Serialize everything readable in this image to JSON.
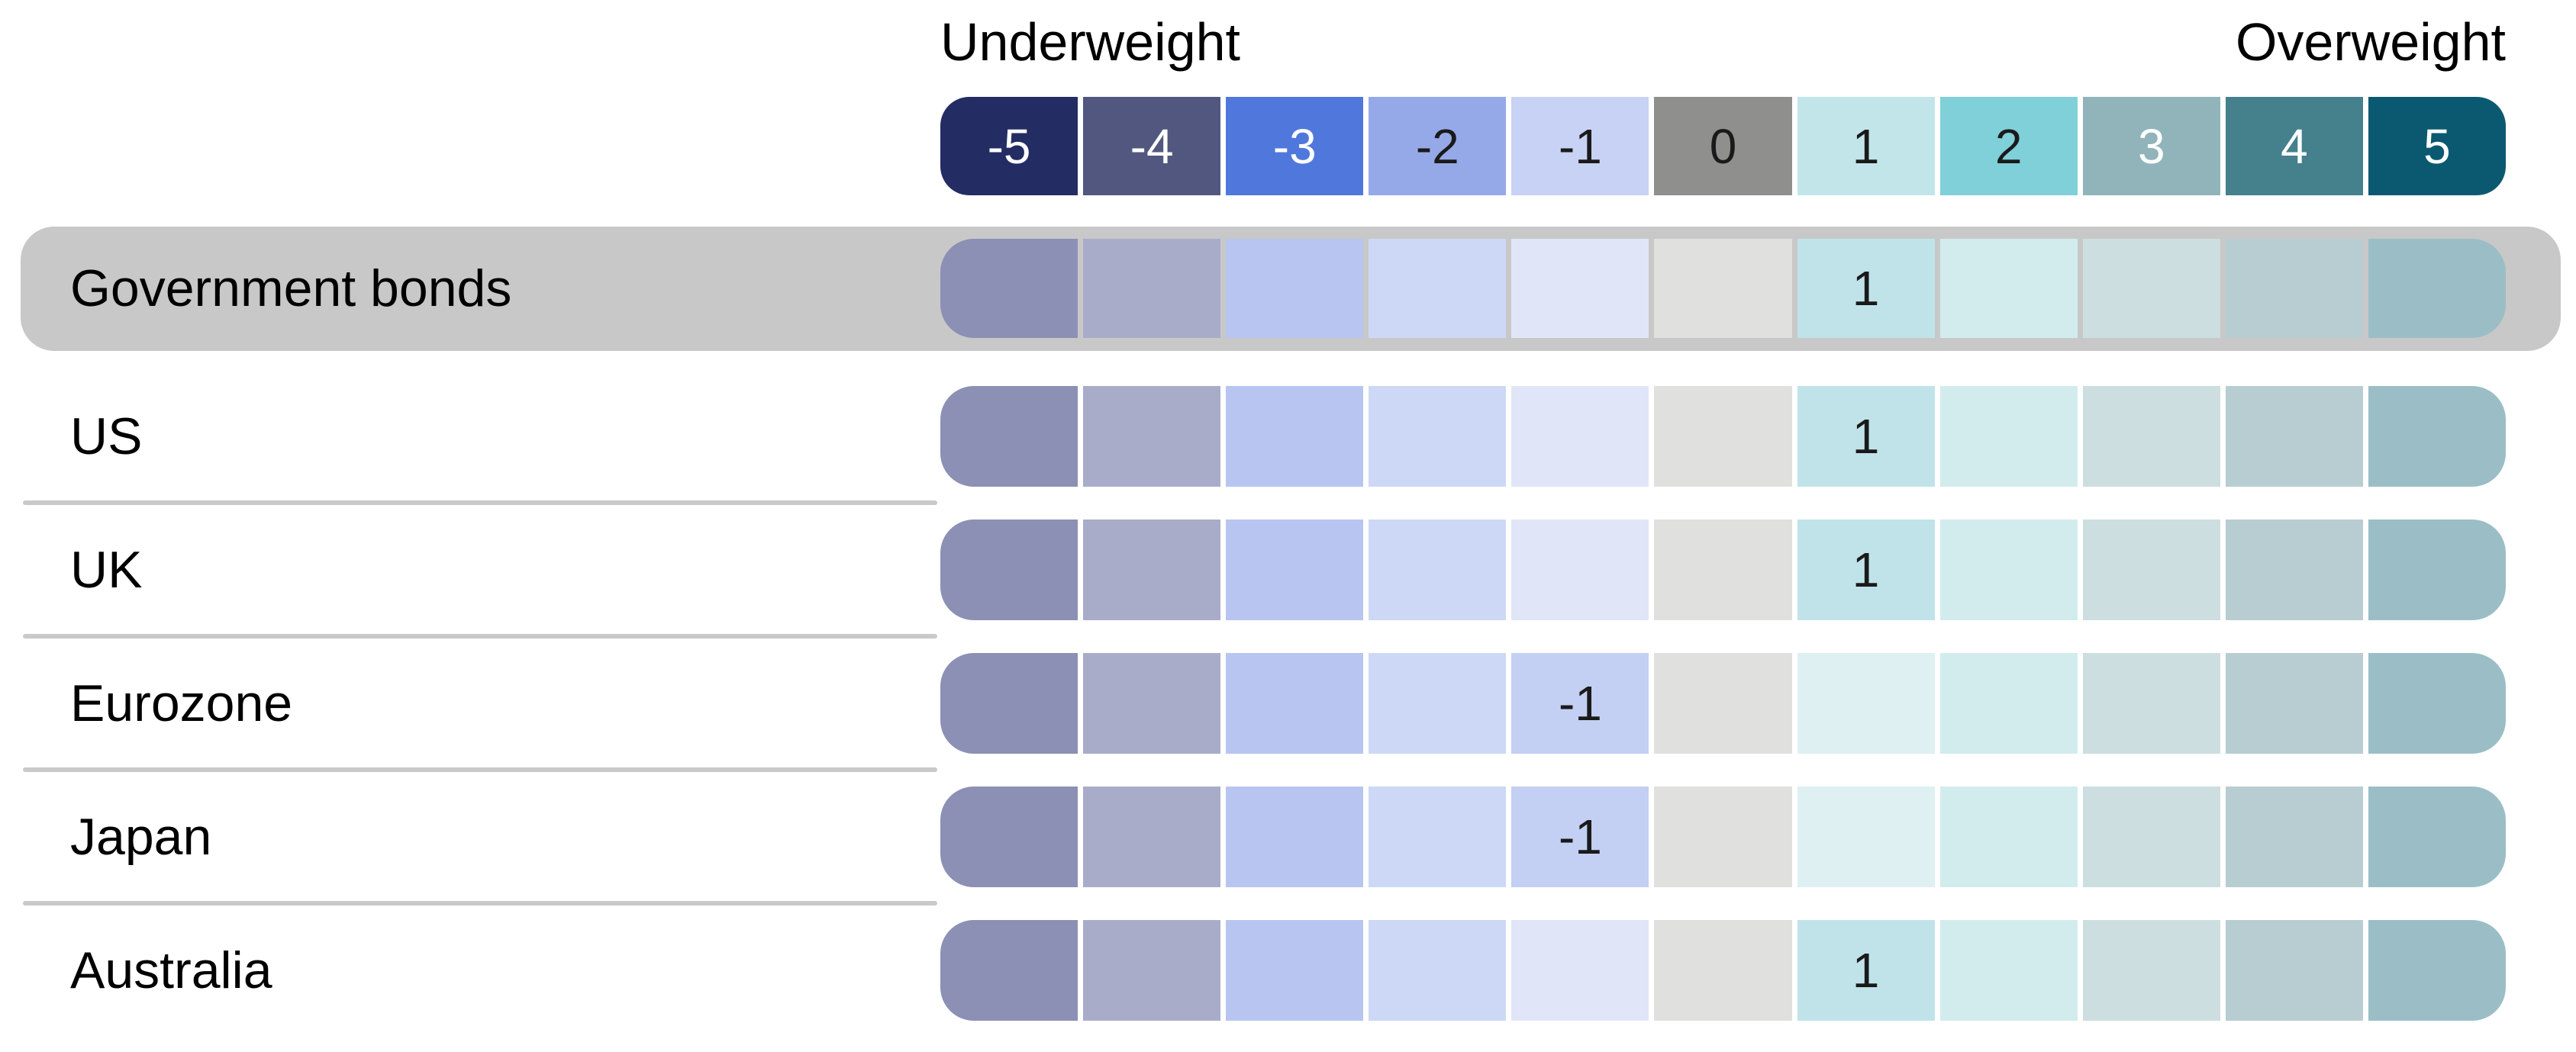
{
  "chart_data": {
    "type": "heatmap",
    "title": "",
    "scale_caption_left": "Underweight",
    "scale_caption_right": "Overweight",
    "x": [
      -5,
      -4,
      -3,
      -2,
      -1,
      0,
      1,
      2,
      3,
      4,
      5
    ],
    "categories": [
      "Government bonds",
      "US",
      "UK",
      "Eurozone",
      "Japan",
      "Australia"
    ],
    "values": [
      1,
      1,
      1,
      -1,
      -1,
      1
    ],
    "legend_position": "top",
    "grid": false
  },
  "header": {
    "left_label": "Underweight",
    "right_label": "Overweight",
    "scale_cells": [
      {
        "label": "-5",
        "bg": "#232C63",
        "fg": "#FFFFFF"
      },
      {
        "label": "-4",
        "bg": "#525780",
        "fg": "#FFFFFF"
      },
      {
        "label": "-3",
        "bg": "#5078DC",
        "fg": "#FFFFFF"
      },
      {
        "label": "-2",
        "bg": "#95A9E8",
        "fg": "#1A1A1A"
      },
      {
        "label": "-1",
        "bg": "#C8D2F4",
        "fg": "#1A1A1A"
      },
      {
        "label": "0",
        "bg": "#8F8F8D",
        "fg": "#1A1A1A"
      },
      {
        "label": "1",
        "bg": "#C2E5EA",
        "fg": "#1A1A1A"
      },
      {
        "label": "2",
        "bg": "#7FD0D8",
        "fg": "#1A1A1A"
      },
      {
        "label": "3",
        "bg": "#90B4BA",
        "fg": "#FFFFFF"
      },
      {
        "label": "4",
        "bg": "#45808D",
        "fg": "#FFFFFF"
      },
      {
        "label": "5",
        "bg": "#0B5971",
        "fg": "#FFFFFF"
      }
    ]
  },
  "palette": {
    "muted": [
      "#8B90B4",
      "#A9ACC9",
      "#B7C5F0",
      "#CCD8F5",
      "#E0E6F8",
      "#E0E0DF",
      "#DEF0F2",
      "#D2ECEE",
      "#CCDEE0",
      "#B8CDD2",
      "#9BBEC6"
    ],
    "selected": {
      "-1": "#C3CFF3",
      "1": "#C0E3E9"
    },
    "selected_text": "#1A1A1A",
    "highlight_row_bg": "#C8C8C8",
    "divider": "#C9C9C9",
    "background": "#FFFFFF"
  },
  "rows": [
    {
      "label": "Government bonds",
      "value": 1,
      "display_value": "1",
      "highlighted": true
    },
    {
      "label": "US",
      "value": 1,
      "display_value": "1",
      "highlighted": false
    },
    {
      "label": "UK",
      "value": 1,
      "display_value": "1",
      "highlighted": false
    },
    {
      "label": "Eurozone",
      "value": -1,
      "display_value": "-1",
      "highlighted": false
    },
    {
      "label": "Japan",
      "value": -1,
      "display_value": "-1",
      "highlighted": false
    },
    {
      "label": "Australia",
      "value": 1,
      "display_value": "1",
      "highlighted": false
    }
  ]
}
